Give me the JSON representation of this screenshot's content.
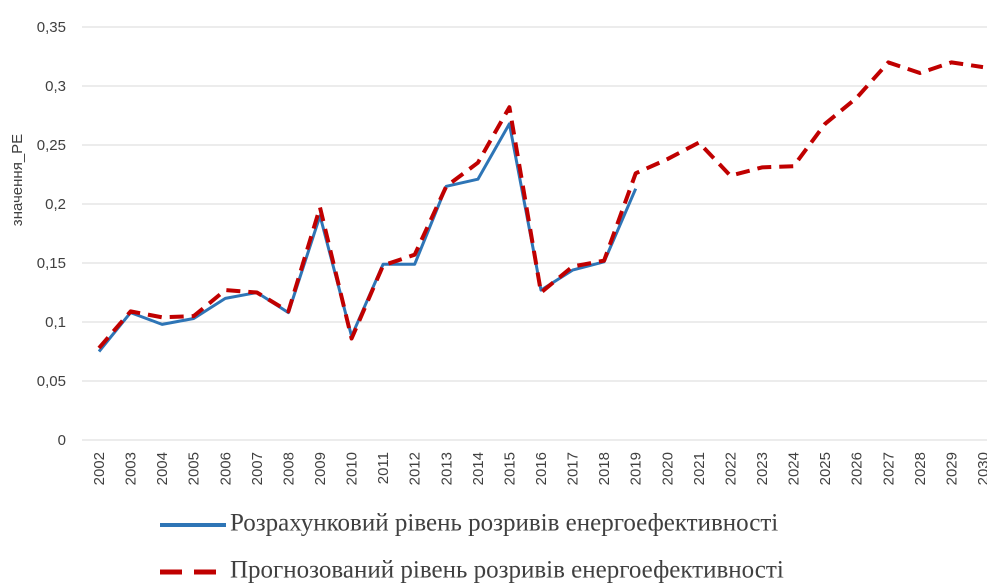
{
  "chart_data": {
    "type": "line",
    "y_label": "значення_РЕ",
    "categories": [
      "2002",
      "2003",
      "2004",
      "2005",
      "2006",
      "2007",
      "2008",
      "2009",
      "2010",
      "2011",
      "2012",
      "2013",
      "2014",
      "2015",
      "2016",
      "2017",
      "2018",
      "2019",
      "2020",
      "2021",
      "2022",
      "2023",
      "2024",
      "2025",
      "2026",
      "2027",
      "2028",
      "2029",
      "2030"
    ],
    "series": [
      {
        "name": "Розрахунковий рівень розривів енергоефективності",
        "color": "#2e75b6",
        "dash": false,
        "values": [
          0.075,
          0.108,
          0.098,
          0.103,
          0.12,
          0.125,
          0.108,
          0.19,
          0.088,
          0.149,
          0.149,
          0.215,
          0.221,
          0.268,
          0.127,
          0.144,
          0.151,
          0.213,
          null,
          null,
          null,
          null,
          null,
          null,
          null,
          null,
          null,
          null,
          null
        ]
      },
      {
        "name": "Прогнозований рівень розривів енергоефективності",
        "color": "#c00000",
        "dash": true,
        "values": [
          0.078,
          0.109,
          0.104,
          0.105,
          0.127,
          0.125,
          0.109,
          0.197,
          0.086,
          0.148,
          0.157,
          0.215,
          0.235,
          0.282,
          0.125,
          0.147,
          0.152,
          0.226,
          0.238,
          0.252,
          0.224,
          0.231,
          0.232,
          0.268,
          0.29,
          0.32,
          0.311,
          0.32,
          0.316
        ]
      }
    ],
    "ylim": [
      0,
      0.35
    ],
    "yticks": [
      0,
      {
        "value": 0.05,
        "label": "0,05"
      },
      {
        "value": 0.1,
        "label": "0,1"
      },
      {
        "value": 0.15,
        "label": "0,15"
      },
      {
        "value": 0.2,
        "label": "0,2"
      },
      {
        "value": 0.25,
        "label": "0,25"
      },
      {
        "value": 0.3,
        "label": "0,3"
      },
      {
        "value": 0.35,
        "label": "0,35"
      }
    ],
    "grid": true
  }
}
